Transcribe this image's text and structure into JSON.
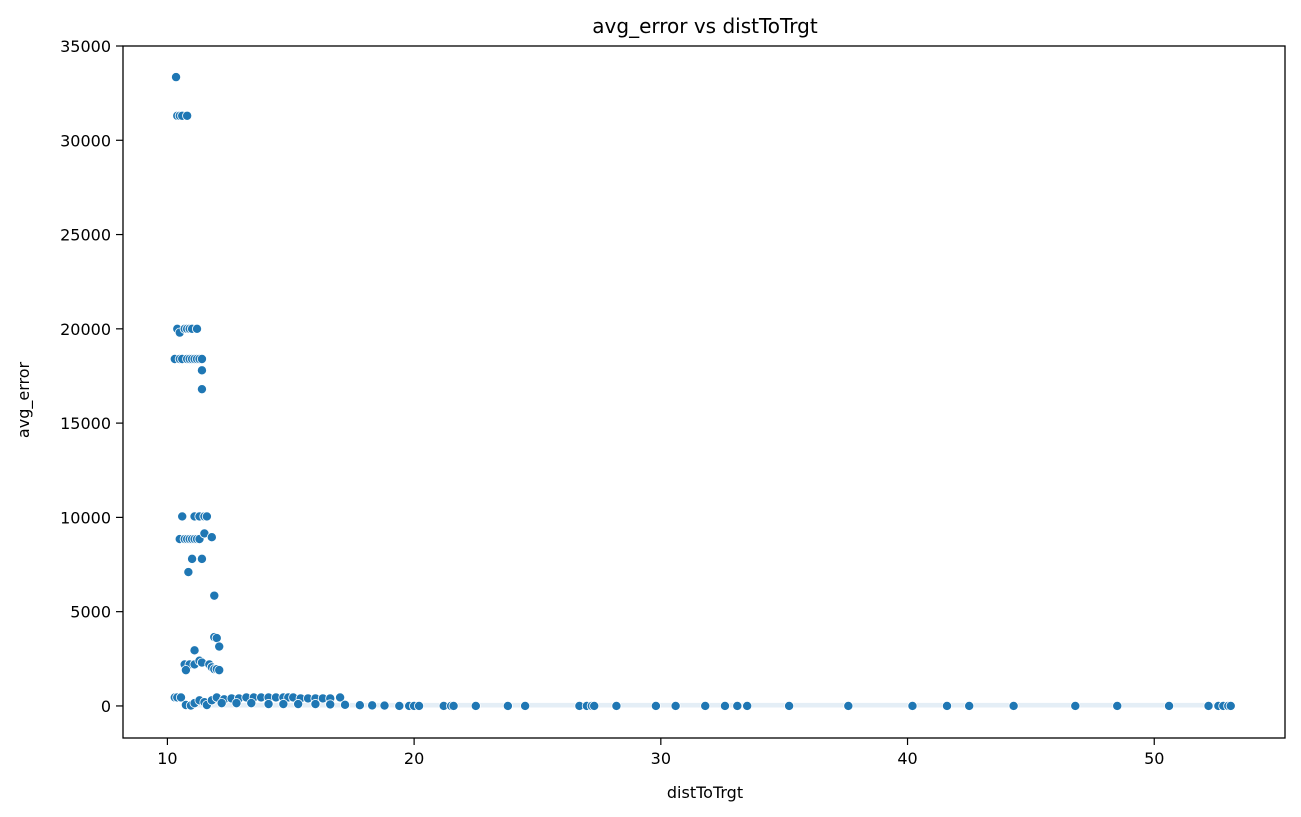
{
  "chart_data": {
    "type": "scatter",
    "title": "avg_error vs distToTrgt",
    "xlabel": "distToTrgt",
    "ylabel": "avg_error",
    "xlim": [
      8.2,
      55.3
    ],
    "ylim": [
      -1700,
      35000
    ],
    "xticks": [
      10,
      20,
      30,
      40,
      50
    ],
    "yticks": [
      0,
      5000,
      10000,
      15000,
      20000,
      25000,
      30000,
      35000
    ],
    "grid": false,
    "color": "#1f77b4",
    "points": [
      [
        10.35,
        33350
      ],
      [
        10.4,
        31300
      ],
      [
        10.5,
        31300
      ],
      [
        10.6,
        31300
      ],
      [
        10.8,
        31300
      ],
      [
        10.4,
        20000
      ],
      [
        10.5,
        19800
      ],
      [
        10.7,
        20000
      ],
      [
        10.8,
        20000
      ],
      [
        10.9,
        20000
      ],
      [
        11.0,
        20000
      ],
      [
        11.2,
        20000
      ],
      [
        10.3,
        18400
      ],
      [
        10.5,
        18400
      ],
      [
        10.6,
        18400
      ],
      [
        10.8,
        18400
      ],
      [
        10.9,
        18400
      ],
      [
        11.0,
        18400
      ],
      [
        11.1,
        18400
      ],
      [
        11.2,
        18400
      ],
      [
        11.3,
        18400
      ],
      [
        11.4,
        18400
      ],
      [
        11.4,
        17800
      ],
      [
        11.4,
        16800
      ],
      [
        10.6,
        10050
      ],
      [
        11.1,
        10050
      ],
      [
        11.3,
        10050
      ],
      [
        11.5,
        10050
      ],
      [
        11.6,
        10050
      ],
      [
        10.5,
        8850
      ],
      [
        10.7,
        8850
      ],
      [
        10.8,
        8850
      ],
      [
        10.9,
        8850
      ],
      [
        11.0,
        8850
      ],
      [
        11.1,
        8850
      ],
      [
        11.2,
        8850
      ],
      [
        11.3,
        8850
      ],
      [
        11.5,
        9150
      ],
      [
        11.8,
        8950
      ],
      [
        11.0,
        7800
      ],
      [
        11.4,
        7800
      ],
      [
        10.85,
        7100
      ],
      [
        11.9,
        5850
      ],
      [
        11.9,
        3650
      ],
      [
        12.0,
        3600
      ],
      [
        12.1,
        3150
      ],
      [
        11.1,
        2950
      ],
      [
        10.7,
        2200
      ],
      [
        10.9,
        2200
      ],
      [
        11.1,
        2200
      ],
      [
        11.3,
        2400
      ],
      [
        11.4,
        2300
      ],
      [
        11.7,
        2200
      ],
      [
        11.8,
        2050
      ],
      [
        11.9,
        1950
      ],
      [
        12.0,
        1950
      ],
      [
        12.1,
        1900
      ],
      [
        10.75,
        1900
      ],
      [
        10.3,
        450
      ],
      [
        10.4,
        450
      ],
      [
        10.55,
        450
      ],
      [
        10.75,
        50
      ],
      [
        10.95,
        20
      ],
      [
        11.1,
        150
      ],
      [
        11.3,
        300
      ],
      [
        11.5,
        200
      ],
      [
        11.6,
        50
      ],
      [
        11.8,
        300
      ],
      [
        12.0,
        450
      ],
      [
        12.3,
        350
      ],
      [
        12.6,
        400
      ],
      [
        12.9,
        400
      ],
      [
        13.2,
        450
      ],
      [
        13.5,
        450
      ],
      [
        13.8,
        450
      ],
      [
        14.1,
        450
      ],
      [
        14.4,
        450
      ],
      [
        14.7,
        450
      ],
      [
        14.9,
        450
      ],
      [
        15.1,
        450
      ],
      [
        15.4,
        400
      ],
      [
        15.7,
        400
      ],
      [
        16.0,
        400
      ],
      [
        16.3,
        400
      ],
      [
        16.6,
        400
      ],
      [
        17.0,
        450
      ],
      [
        12.2,
        150
      ],
      [
        12.8,
        150
      ],
      [
        13.4,
        150
      ],
      [
        14.1,
        100
      ],
      [
        14.7,
        100
      ],
      [
        15.3,
        100
      ],
      [
        16.0,
        100
      ],
      [
        16.6,
        80
      ],
      [
        17.2,
        60
      ],
      [
        17.8,
        40
      ],
      [
        18.3,
        30
      ],
      [
        18.8,
        20
      ],
      [
        19.4,
        0
      ],
      [
        19.8,
        0
      ],
      [
        20.0,
        0
      ],
      [
        20.2,
        0
      ],
      [
        21.2,
        0
      ],
      [
        21.5,
        0
      ],
      [
        21.6,
        0
      ],
      [
        22.5,
        0
      ],
      [
        23.8,
        0
      ],
      [
        24.5,
        0
      ],
      [
        26.7,
        0
      ],
      [
        27.0,
        0
      ],
      [
        27.2,
        0
      ],
      [
        27.3,
        0
      ],
      [
        28.2,
        0
      ],
      [
        29.8,
        0
      ],
      [
        30.6,
        0
      ],
      [
        31.8,
        0
      ],
      [
        32.6,
        0
      ],
      [
        33.1,
        0
      ],
      [
        33.5,
        0
      ],
      [
        35.2,
        0
      ],
      [
        37.6,
        0
      ],
      [
        40.2,
        0
      ],
      [
        41.6,
        0
      ],
      [
        42.5,
        0
      ],
      [
        44.3,
        0
      ],
      [
        46.8,
        0
      ],
      [
        48.5,
        0
      ],
      [
        50.6,
        0
      ],
      [
        52.2,
        0
      ],
      [
        52.6,
        0
      ],
      [
        52.8,
        0
      ],
      [
        53.0,
        0
      ],
      [
        53.1,
        0
      ]
    ],
    "dense_band": {
      "x": [
        11.0,
        53.0
      ],
      "y": [
        -80,
        160
      ]
    }
  }
}
